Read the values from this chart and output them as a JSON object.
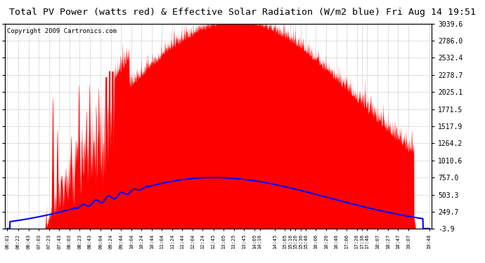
{
  "title": "Total PV Power (watts red) & Effective Solar Radiation (W/m2 blue) Fri Aug 14 19:51",
  "copyright": "Copyright 2009 Cartronics.com",
  "y_ticks": [
    -3.9,
    249.7,
    503.3,
    757.0,
    1010.6,
    1264.2,
    1517.9,
    1771.5,
    2025.1,
    2278.7,
    2532.4,
    2786.0,
    3039.6
  ],
  "y_min": -3.9,
  "y_max": 3039.6,
  "background_color": "#ffffff",
  "grid_color": "#aaaaaa",
  "red_color": "#ff0000",
  "blue_color": "#0000ff",
  "title_fontsize": 9.5,
  "copyright_fontsize": 6.5,
  "x_labels": [
    "06:01",
    "06:22",
    "06:43",
    "07:03",
    "07:23",
    "07:43",
    "08:03",
    "08:23",
    "08:43",
    "09:04",
    "09:24",
    "09:44",
    "10:04",
    "10:24",
    "10:44",
    "11:04",
    "11:24",
    "11:44",
    "12:04",
    "12:24",
    "12:45",
    "13:05",
    "13:25",
    "13:45",
    "14:05",
    "14:16",
    "14:45",
    "15:05",
    "15:16",
    "15:26",
    "15:36",
    "15:46",
    "16:06",
    "16:26",
    "16:46",
    "17:06",
    "17:26",
    "17:36",
    "17:46",
    "18:07",
    "18:27",
    "18:47",
    "19:07",
    "19:48"
  ]
}
